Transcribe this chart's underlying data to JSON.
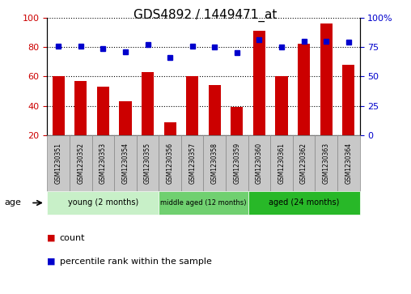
{
  "title": "GDS4892 / 1449471_at",
  "samples": [
    "GSM1230351",
    "GSM1230352",
    "GSM1230353",
    "GSM1230354",
    "GSM1230355",
    "GSM1230356",
    "GSM1230357",
    "GSM1230358",
    "GSM1230359",
    "GSM1230360",
    "GSM1230361",
    "GSM1230362",
    "GSM1230363",
    "GSM1230364"
  ],
  "counts": [
    60,
    57,
    53,
    43,
    63,
    29,
    60,
    54,
    39,
    91,
    60,
    82,
    96,
    68
  ],
  "percentiles": [
    76,
    76,
    74,
    71,
    77,
    66,
    76,
    75,
    70,
    81,
    75,
    80,
    80,
    79
  ],
  "bar_color": "#cc0000",
  "dot_color": "#0000cc",
  "ylim_left": [
    20,
    100
  ],
  "ylim_right": [
    0,
    100
  ],
  "yticks_left": [
    20,
    40,
    60,
    80,
    100
  ],
  "ytick_labels_right": [
    "0",
    "25",
    "50",
    "75",
    "100%"
  ],
  "groups": [
    {
      "label": "young (2 months)",
      "start": 0,
      "end": 5,
      "color": "#c8f0c8"
    },
    {
      "label": "middle aged (12 months)",
      "start": 5,
      "end": 9,
      "color": "#70d070"
    },
    {
      "label": "aged (24 months)",
      "start": 9,
      "end": 14,
      "color": "#28b828"
    }
  ],
  "age_label": "age",
  "legend_count_label": "count",
  "legend_percentile_label": "percentile rank within the sample",
  "sample_box_color": "#c8c8c8",
  "sample_box_edge": "#888888"
}
